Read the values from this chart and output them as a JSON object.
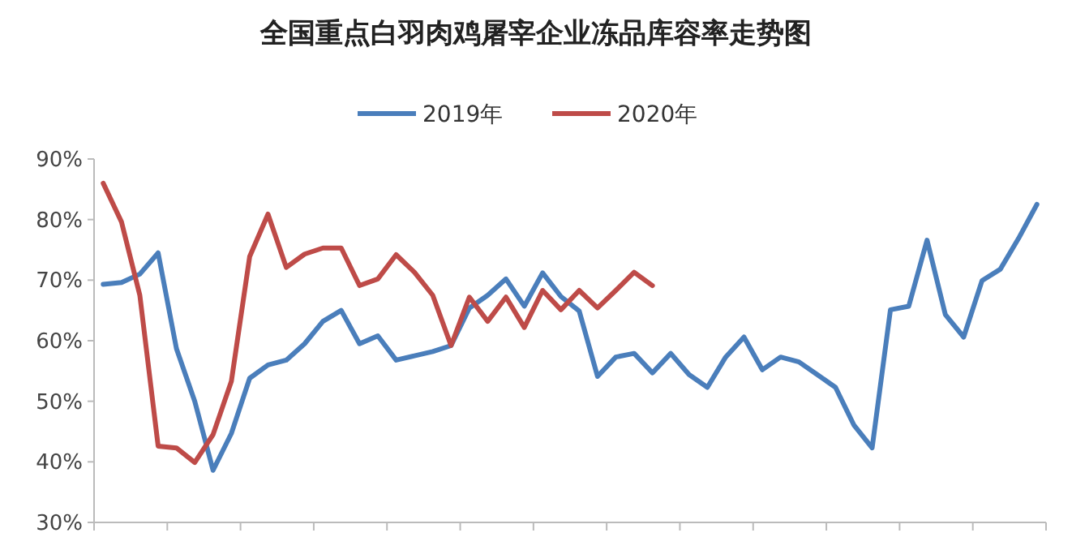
{
  "chart_data": {
    "type": "line",
    "title": "全国重点白羽肉鸡屠宰企业冻品库容率走势图",
    "categories": [
      null,
      null,
      null,
      null,
      null,
      null,
      null,
      null,
      null,
      null,
      null,
      null,
      null,
      null,
      null,
      null,
      null,
      null,
      null,
      null,
      null,
      null,
      null,
      null,
      null,
      null,
      null,
      null,
      null,
      null,
      null,
      null,
      null,
      null,
      null,
      null,
      null,
      null,
      null,
      null,
      null,
      null,
      null,
      null,
      null,
      null,
      null,
      null,
      null,
      null,
      null,
      null
    ],
    "series": [
      {
        "name": "2019年",
        "color": "#4a7ebb",
        "values": [
          69.3,
          69.6,
          71,
          74.5,
          58.7,
          50,
          38.6,
          44.7,
          53.8,
          56,
          56.8,
          59.5,
          63.2,
          65,
          59.5,
          60.8,
          56.8,
          57.5,
          58.2,
          59.2,
          65.4,
          67.5,
          70.2,
          65.7,
          71.2,
          67.3,
          64.9,
          54.1,
          57.3,
          57.9,
          54.7,
          57.9,
          54.4,
          52.3,
          57.3,
          60.6,
          55.2,
          57.3,
          56.5,
          54.4,
          52.3,
          46.1,
          42.3,
          65.1,
          65.7,
          76.6,
          64.3,
          60.6,
          69.9,
          71.8,
          76.9,
          82.5
        ]
      },
      {
        "name": "2020年",
        "color": "#be4b48",
        "values": [
          86,
          79.6,
          67.5,
          42.6,
          42.3,
          39.9,
          44.5,
          53.3,
          73.9,
          80.9,
          72.1,
          74.3,
          75.3,
          75.3,
          69.1,
          70.2,
          74.2,
          71.3,
          67.5,
          59.2,
          67.2,
          63.2,
          67.2,
          62.2,
          68.3,
          65.1,
          68.3,
          65.4,
          68.3,
          71.3,
          69.1,
          null,
          null,
          null,
          null,
          null,
          null,
          null,
          null,
          null,
          null,
          null,
          null,
          null,
          null,
          null,
          null,
          null,
          null,
          null,
          null,
          null
        ]
      }
    ],
    "ylim": [
      30,
      90
    ],
    "yticks": [
      {
        "value": 30,
        "label": "30%"
      },
      {
        "value": 40,
        "label": "40%"
      },
      {
        "value": 50,
        "label": "50%"
      },
      {
        "value": 60,
        "label": "60%"
      },
      {
        "value": 70,
        "label": "70%"
      },
      {
        "value": 80,
        "label": "80%"
      },
      {
        "value": 90,
        "label": "90%"
      }
    ],
    "legend": "top",
    "grid": false,
    "marker": "none",
    "line_style": "solid"
  }
}
